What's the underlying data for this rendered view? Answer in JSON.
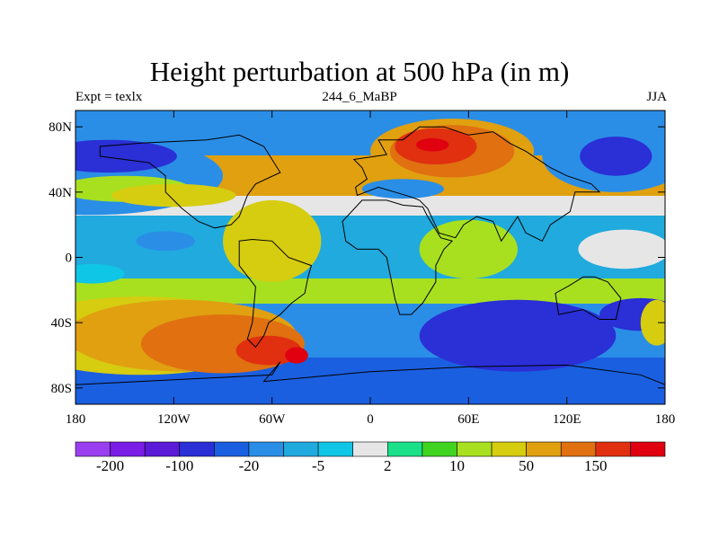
{
  "header": {
    "title": "Height perturbation at 500 hPa (in m)",
    "left": "Expt = texlx",
    "center": "244_6_MaBP",
    "right": "JJA"
  },
  "map": {
    "lon_range": [
      -180,
      180
    ],
    "lat_range": [
      -90,
      90
    ],
    "lat_ticks": [
      {
        "value": 80,
        "label": "80N"
      },
      {
        "value": 40,
        "label": "40N"
      },
      {
        "value": 0,
        "label": "0"
      },
      {
        "value": -40,
        "label": "40S"
      },
      {
        "value": -80,
        "label": "80S"
      }
    ],
    "lon_ticks": [
      {
        "value": -180,
        "label": "180"
      },
      {
        "value": -120,
        "label": "120W"
      },
      {
        "value": -60,
        "label": "60W"
      },
      {
        "value": 0,
        "label": "0"
      },
      {
        "value": 60,
        "label": "60E"
      },
      {
        "value": 120,
        "label": "120E"
      },
      {
        "value": 180,
        "label": "180"
      }
    ]
  },
  "colorbar": {
    "colors": [
      "#9a3ff0",
      "#7a1de6",
      "#5a1ad6",
      "#2a2fd6",
      "#1a5fe0",
      "#2a8ee6",
      "#20aade",
      "#10c6e6",
      "#e6e6e6",
      "#1ae08a",
      "#40d420",
      "#a8e020",
      "#d6cc10",
      "#e0a010",
      "#e07010",
      "#e03010",
      "#e00010"
    ],
    "labels": [
      {
        "boundary": 1,
        "text": "-200"
      },
      {
        "boundary": 3,
        "text": "-100"
      },
      {
        "boundary": 5,
        "text": "-20"
      },
      {
        "boundary": 7,
        "text": "-5"
      },
      {
        "boundary": 9,
        "text": "2"
      },
      {
        "boundary": 11,
        "text": "10"
      },
      {
        "boundary": 13,
        "text": "50"
      },
      {
        "boundary": 15,
        "text": "150"
      }
    ]
  },
  "field_regions": [
    {
      "level": 5,
      "center": [
        -170,
        50
      ],
      "radius": [
        80,
        24
      ]
    },
    {
      "level": 3,
      "center": [
        -160,
        62
      ],
      "radius": [
        42,
        10
      ]
    },
    {
      "level": 11,
      "center": [
        -150,
        42
      ],
      "radius": [
        40,
        8
      ]
    },
    {
      "level": 12,
      "center": [
        -120,
        38
      ],
      "radius": [
        38,
        7
      ]
    },
    {
      "level": 5,
      "center": [
        150,
        62
      ],
      "radius": [
        45,
        22
      ]
    },
    {
      "level": 3,
      "center": [
        150,
        62
      ],
      "radius": [
        22,
        12
      ]
    },
    {
      "level": 13,
      "center": [
        50,
        65
      ],
      "radius": [
        50,
        20
      ]
    },
    {
      "level": 14,
      "center": [
        50,
        65
      ],
      "radius": [
        38,
        16
      ]
    },
    {
      "level": 15,
      "center": [
        40,
        68
      ],
      "radius": [
        25,
        11
      ]
    },
    {
      "level": 16,
      "center": [
        38,
        69
      ],
      "radius": [
        10,
        4
      ]
    },
    {
      "level": 5,
      "center": [
        20,
        42
      ],
      "radius": [
        25,
        6
      ]
    },
    {
      "level": 6,
      "center": [
        -150,
        10
      ],
      "radius": [
        50,
        12
      ]
    },
    {
      "level": 5,
      "center": [
        -125,
        10
      ],
      "radius": [
        18,
        6
      ]
    },
    {
      "level": 7,
      "center": [
        -170,
        -10
      ],
      "radius": [
        20,
        6
      ]
    },
    {
      "level": 12,
      "center": [
        -60,
        10
      ],
      "radius": [
        30,
        25
      ]
    },
    {
      "level": 11,
      "center": [
        60,
        5
      ],
      "radius": [
        30,
        18
      ]
    },
    {
      "level": 8,
      "center": [
        155,
        5
      ],
      "radius": [
        28,
        12
      ]
    },
    {
      "level": 12,
      "center": [
        -140,
        -48
      ],
      "radius": [
        80,
        24
      ]
    },
    {
      "level": 13,
      "center": [
        -115,
        -48
      ],
      "radius": [
        70,
        22
      ]
    },
    {
      "level": 14,
      "center": [
        -90,
        -53
      ],
      "radius": [
        50,
        18
      ]
    },
    {
      "level": 15,
      "center": [
        -62,
        -57
      ],
      "radius": [
        20,
        9
      ]
    },
    {
      "level": 16,
      "center": [
        -45,
        -60
      ],
      "radius": [
        7,
        5
      ]
    },
    {
      "level": 13,
      "center": [
        -175,
        -48
      ],
      "radius": [
        12,
        10
      ]
    },
    {
      "level": 3,
      "center": [
        90,
        -48
      ],
      "radius": [
        60,
        22
      ]
    },
    {
      "level": 3,
      "center": [
        165,
        -35
      ],
      "radius": [
        25,
        10
      ]
    },
    {
      "level": 12,
      "center": [
        175,
        -40
      ],
      "radius": [
        10,
        14
      ]
    }
  ]
}
